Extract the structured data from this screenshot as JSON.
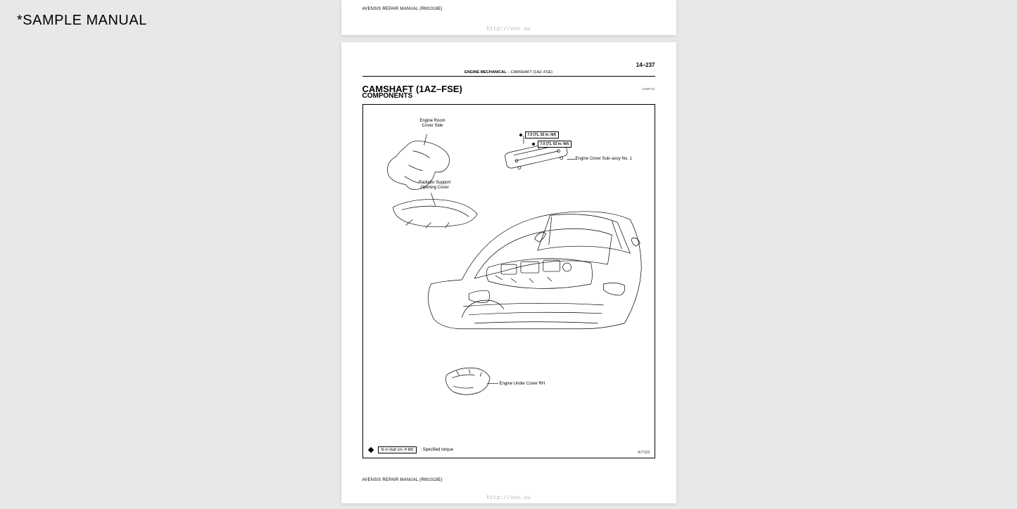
{
  "watermark": "*SAMPLE MANUAL",
  "topSlice": {
    "footer": "AVENSIS REPAIR MANUAL   (RM1018E)",
    "link": "http://vnx.su"
  },
  "mainPage": {
    "pageNumber": "14–237",
    "sectionHeader": {
      "bold": "ENGINE MECHANICAL",
      "rest": "   –   CAMSHAFT (1AZ–FSE)"
    },
    "title": "CAMSHAFT (1AZ–FSE)",
    "subtitle": "COMPONENTS",
    "codeSmall": "14I8P-01",
    "labels": {
      "engineRoomCoverSide": "Engine Room\nCover Side",
      "radiatorSupport": "Radiator Support\nOpening Cover",
      "engineCoverSub": "Engine Cover Sub–assy No. 1",
      "engineUnderCover": "Engine Under Cover RH"
    },
    "torque1": "7.0 (71, 62 in.·lbf)",
    "torque2": "7.0 (71, 62 in.·lbf)",
    "legend": {
      "box": "N·m (kgf·cm, ft·lbf)",
      "text": ": Specified torque"
    },
    "figCode": "A77322",
    "footer": "AVENSIS REPAIR MANUAL   (RM1018E)",
    "link": "http://vnx.su"
  }
}
